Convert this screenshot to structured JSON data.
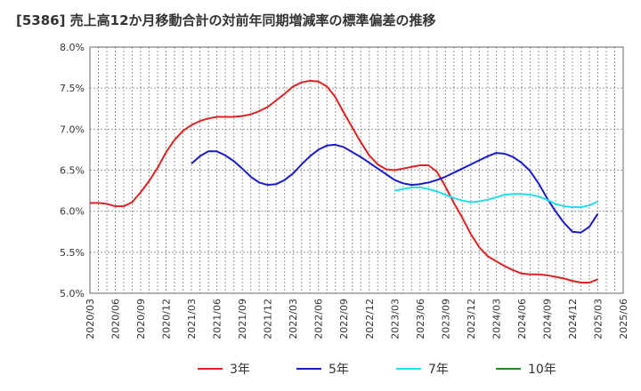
{
  "chart_data": {
    "type": "line",
    "title": "[5386]  売上高12か月移動合計の対前年同期増減率の標準偏差の推移",
    "xlabel": "",
    "ylabel": "",
    "ylim": [
      5.0,
      8.0
    ],
    "yticks": [
      "8.0%",
      "7.5%",
      "7.0%",
      "6.5%",
      "6.0%",
      "5.5%",
      "5.0%"
    ],
    "ytick_values": [
      8.0,
      7.5,
      7.0,
      6.5,
      6.0,
      5.5,
      5.0
    ],
    "xticks": [
      "2020/03",
      "2020/06",
      "2020/09",
      "2020/12",
      "2021/03",
      "2021/06",
      "2021/09",
      "2021/12",
      "2022/03",
      "2022/06",
      "2022/09",
      "2022/12",
      "2023/03",
      "2023/06",
      "2023/09",
      "2023/12",
      "2024/03",
      "2024/06",
      "2024/09",
      "2024/12",
      "2025/03",
      "2025/06"
    ],
    "grid": true,
    "legend_position": "bottom",
    "series": [
      {
        "name": "3年",
        "color": "#dd2222",
        "start": "2020/03",
        "values": [
          6.1,
          6.1,
          6.09,
          6.06,
          6.06,
          6.11,
          6.23,
          6.37,
          6.53,
          6.72,
          6.87,
          6.98,
          7.05,
          7.1,
          7.13,
          7.15,
          7.15,
          7.15,
          7.16,
          7.18,
          7.22,
          7.27,
          7.35,
          7.43,
          7.52,
          7.57,
          7.59,
          7.58,
          7.52,
          7.39,
          7.2,
          7.02,
          6.84,
          6.68,
          6.57,
          6.51,
          6.5,
          6.52,
          6.54,
          6.56,
          6.56,
          6.48,
          6.3,
          6.1,
          5.92,
          5.72,
          5.56,
          5.45,
          5.39,
          5.33,
          5.28,
          5.24,
          5.23,
          5.23,
          5.22,
          5.2,
          5.18,
          5.15,
          5.13,
          5.13,
          5.17
        ]
      },
      {
        "name": "5年",
        "color": "#1a1acc",
        "start": "2021/03",
        "values": [
          6.58,
          6.67,
          6.73,
          6.73,
          6.68,
          6.61,
          6.52,
          6.42,
          6.35,
          6.32,
          6.33,
          6.38,
          6.46,
          6.57,
          6.67,
          6.75,
          6.8,
          6.81,
          6.78,
          6.72,
          6.66,
          6.59,
          6.52,
          6.45,
          6.38,
          6.34,
          6.32,
          6.33,
          6.35,
          6.38,
          6.42,
          6.47,
          6.52,
          6.57,
          6.62,
          6.67,
          6.71,
          6.7,
          6.66,
          6.59,
          6.49,
          6.34,
          6.16,
          6.0,
          5.86,
          5.75,
          5.74,
          5.81,
          5.97
        ]
      },
      {
        "name": "7年",
        "color": "#22ddee",
        "start": "2023/03",
        "values": [
          6.25,
          6.27,
          6.29,
          6.29,
          6.27,
          6.24,
          6.2,
          6.16,
          6.13,
          6.11,
          6.12,
          6.14,
          6.17,
          6.2,
          6.21,
          6.21,
          6.2,
          6.18,
          6.14,
          6.09,
          6.06,
          6.05,
          6.05,
          6.07,
          6.12
        ]
      },
      {
        "name": "10年",
        "color": "#228822",
        "start": "2025/03",
        "values": []
      }
    ]
  }
}
